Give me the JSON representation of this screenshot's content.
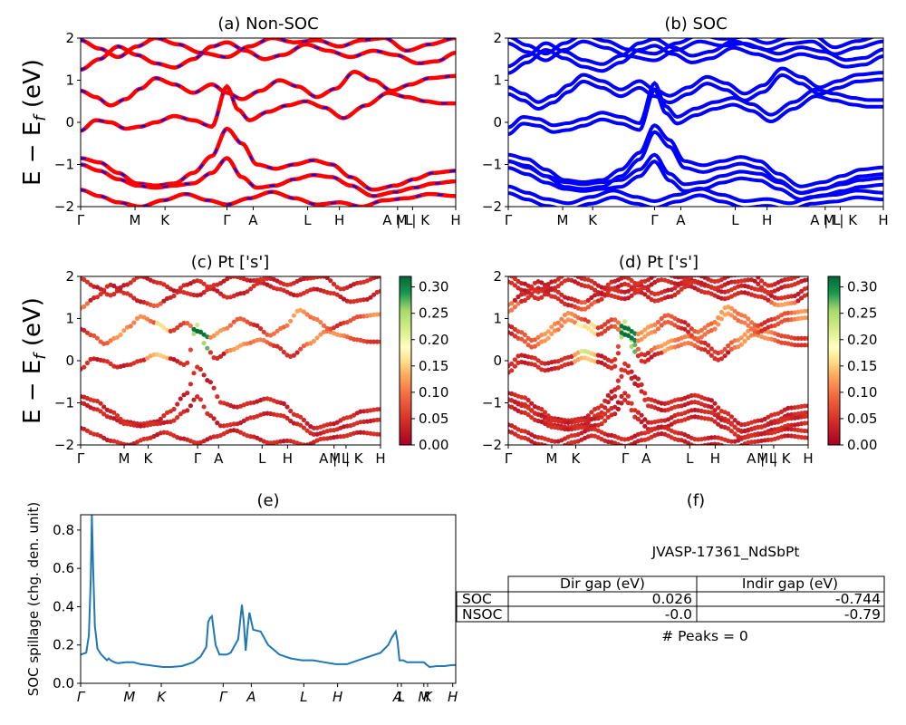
{
  "panels": {
    "a": {
      "title": "(a) Non-SOC"
    },
    "b": {
      "title": "(b) SOC"
    },
    "c": {
      "title": "(c)  Pt ['s']"
    },
    "d": {
      "title": "(d) Pt ['s']"
    },
    "e": {
      "title": "(e)",
      "ylabel": "SOC spillage (chg. den. unit)"
    },
    "f": {
      "title": "(f)"
    }
  },
  "band_ylabel": "E − E_f (eV)",
  "colors": {
    "nsoc_line": "#ff0000",
    "nsoc_dash": "#0000ff",
    "soc_line": "#0000ff",
    "spillage_line": "#1f77b4"
  },
  "colorbar": {
    "cmap": "RdYlGn",
    "range": [
      0.0,
      0.32
    ],
    "ticks": [
      "0.00",
      "0.05",
      "0.10",
      "0.15",
      "0.20",
      "0.25",
      "0.30"
    ]
  },
  "table": {
    "material": "JVASP-17361_NdSbPt",
    "columns": [
      "Dir gap (eV)",
      "Indir gap (eV)"
    ],
    "rows": [
      {
        "label": "SOC",
        "dir": "0.026",
        "indir": "-0.744"
      },
      {
        "label": "NSOC",
        "dir": "-0.0",
        "indir": "-0.79"
      }
    ],
    "peaks": "# Peaks = 0"
  },
  "chart_data": [
    {
      "id": "a",
      "type": "line",
      "title": "(a) Non-SOC",
      "ylabel": "E − E_f (eV)",
      "ylim": [
        -2,
        2
      ],
      "yticks": [
        "−2",
        "−1",
        "0",
        "1",
        "2"
      ],
      "kpath": [
        {
          "label": "Γ",
          "k": 0.0
        },
        {
          "label": "M",
          "k": 0.145
        },
        {
          "label": "K",
          "k": 0.225
        },
        {
          "label": "Γ",
          "k": 0.39
        },
        {
          "label": "A",
          "k": 0.46
        },
        {
          "label": "L",
          "k": 0.605
        },
        {
          "label": "H",
          "k": 0.69
        },
        {
          "label": "A | L",
          "k": 0.845
        },
        {
          "label": "M | K",
          "k": 0.885
        },
        {
          "label": "H",
          "k": 1.0
        }
      ],
      "series": [
        {
          "x": [
            0,
            0.05,
            0.1,
            0.15,
            0.2,
            0.25,
            0.3,
            0.35,
            0.39,
            0.43,
            0.47,
            0.52,
            0.57,
            0.62,
            0.67,
            0.72,
            0.78,
            0.84,
            0.89,
            0.94,
            1.0
          ],
          "y": [
            -0.85,
            -0.95,
            -1.2,
            -1.45,
            -1.5,
            -1.45,
            -1.2,
            -0.8,
            -0.15,
            -0.5,
            -1.0,
            -1.1,
            -1.0,
            -0.9,
            -1.0,
            -1.3,
            -1.6,
            -1.5,
            -1.35,
            -1.2,
            -1.15
          ]
        },
        {
          "x": [
            0,
            0.05,
            0.1,
            0.15,
            0.2,
            0.25,
            0.3,
            0.35,
            0.39,
            0.43,
            0.47,
            0.52,
            0.57,
            0.62,
            0.67,
            0.72,
            0.78,
            0.84,
            0.89,
            0.94,
            1.0
          ],
          "y": [
            -1.0,
            -1.15,
            -1.35,
            -1.5,
            -1.55,
            -1.5,
            -1.45,
            -1.2,
            -0.85,
            -1.3,
            -1.55,
            -1.5,
            -1.35,
            -1.25,
            -1.3,
            -1.5,
            -1.75,
            -1.65,
            -1.55,
            -1.45,
            -1.4
          ]
        },
        {
          "x": [
            0,
            0.04,
            0.08,
            0.12,
            0.16,
            0.2,
            0.25,
            0.3,
            0.35,
            0.39,
            0.42,
            0.45,
            0.5,
            0.55,
            0.6,
            0.65,
            0.7,
            0.76,
            0.82,
            0.87,
            0.92,
            0.96,
            1.0
          ],
          "y": [
            -0.2,
            0.05,
            0.0,
            -0.15,
            -0.1,
            0.0,
            0.15,
            0.05,
            -0.1,
            0.85,
            0.3,
            0.05,
            0.25,
            0.4,
            0.5,
            0.35,
            0.1,
            0.4,
            0.7,
            0.6,
            0.5,
            0.45,
            0.45
          ]
        },
        {
          "x": [
            0,
            0.04,
            0.08,
            0.12,
            0.16,
            0.2,
            0.25,
            0.3,
            0.35,
            0.39,
            0.43,
            0.48,
            0.53,
            0.58,
            0.63,
            0.68,
            0.73,
            0.78,
            0.83,
            0.88,
            0.93,
            1.0
          ],
          "y": [
            0.75,
            0.6,
            0.4,
            0.55,
            0.8,
            1.05,
            0.9,
            0.7,
            0.9,
            0.7,
            0.55,
            0.75,
            1.0,
            0.85,
            0.6,
            0.8,
            1.2,
            1.0,
            0.75,
            0.9,
            1.05,
            1.1
          ]
        },
        {
          "x": [
            0,
            0.05,
            0.1,
            0.15,
            0.2,
            0.25,
            0.3,
            0.35,
            0.39,
            0.44,
            0.49,
            0.54,
            0.6,
            0.66,
            0.72,
            0.78,
            0.84,
            0.9,
            0.95,
            1.0
          ],
          "y": [
            1.25,
            1.5,
            1.8,
            1.6,
            1.4,
            1.3,
            1.5,
            1.8,
            1.9,
            1.7,
            1.5,
            1.6,
            1.85,
            1.7,
            1.55,
            1.7,
            1.6,
            1.4,
            1.45,
            1.65
          ]
        },
        {
          "x": [
            0,
            0.05,
            0.1,
            0.15,
            0.2,
            0.26,
            0.32,
            0.39,
            0.45,
            0.51,
            0.57,
            0.63,
            0.69,
            0.75,
            0.81,
            0.87,
            0.93,
            1.0
          ],
          "y": [
            1.95,
            1.75,
            1.55,
            1.8,
            2.0,
            1.85,
            1.65,
            1.55,
            1.8,
            2.0,
            1.9,
            1.95,
            1.8,
            1.95,
            2.0,
            1.7,
            1.85,
            2.0
          ]
        },
        {
          "x": [
            0,
            0.05,
            0.1,
            0.16,
            0.22,
            0.28,
            0.34,
            0.39,
            0.45,
            0.51,
            0.57,
            0.63,
            0.69,
            0.75,
            0.81,
            0.87,
            0.93,
            1.0
          ],
          "y": [
            -1.6,
            -1.75,
            -1.9,
            -2.0,
            -1.85,
            -1.7,
            -1.85,
            -1.95,
            -1.8,
            -1.65,
            -1.8,
            -1.95,
            -1.9,
            -2.0,
            -1.85,
            -1.8,
            -1.7,
            -1.75
          ]
        }
      ]
    },
    {
      "id": "b",
      "type": "line",
      "title": "(b) SOC",
      "ylim": [
        -2,
        2
      ],
      "yticks": [
        "−2",
        "−1",
        "0",
        "1",
        "2"
      ],
      "kpath": [
        {
          "label": "Γ",
          "k": 0.0
        },
        {
          "label": "M",
          "k": 0.145
        },
        {
          "label": "K",
          "k": 0.225
        },
        {
          "label": "Γ",
          "k": 0.39
        },
        {
          "label": "A",
          "k": 0.46
        },
        {
          "label": "L",
          "k": 0.605
        },
        {
          "label": "H",
          "k": 0.69
        },
        {
          "label": "A | L",
          "k": 0.845
        },
        {
          "label": "M | K",
          "k": 0.885
        },
        {
          "label": "H",
          "k": 1.0
        }
      ],
      "note": "same dispersion as (a) with spin-orbit split pairs",
      "split": 0.08
    },
    {
      "id": "c",
      "type": "scatter",
      "title": "(c)  Pt ['s']",
      "ylim": [
        -2,
        2
      ],
      "color_range": [
        0.0,
        0.32
      ],
      "note": "band points colored by Pt s-orbital projection",
      "kpath": [
        {
          "label": "Γ",
          "k": 0.0
        },
        {
          "label": "M",
          "k": 0.145
        },
        {
          "label": "K",
          "k": 0.225
        },
        {
          "label": "Γ",
          "k": 0.39
        },
        {
          "label": "A",
          "k": 0.46
        },
        {
          "label": "L",
          "k": 0.605
        },
        {
          "label": "H",
          "k": 0.69
        },
        {
          "label": "A | L",
          "k": 0.845
        },
        {
          "label": "M | K",
          "k": 0.885
        },
        {
          "label": "H",
          "k": 1.0
        }
      ]
    },
    {
      "id": "d",
      "type": "scatter",
      "title": "(d) Pt ['s']",
      "ylim": [
        -2,
        2
      ],
      "color_range": [
        0.0,
        0.32
      ],
      "note": "SOC band points colored by Pt s-orbital projection",
      "kpath": [
        {
          "label": "Γ",
          "k": 0.0
        },
        {
          "label": "M",
          "k": 0.145
        },
        {
          "label": "K",
          "k": 0.225
        },
        {
          "label": "Γ",
          "k": 0.39
        },
        {
          "label": "A",
          "k": 0.46
        },
        {
          "label": "L",
          "k": 0.605
        },
        {
          "label": "H",
          "k": 0.69
        },
        {
          "label": "A | L",
          "k": 0.845
        },
        {
          "label": "M | K",
          "k": 0.885
        },
        {
          "label": "H",
          "k": 1.0
        }
      ]
    },
    {
      "id": "e",
      "type": "line",
      "title": "(e)",
      "ylabel": "SOC spillage (chg. den. unit)",
      "ylim": [
        0,
        0.88
      ],
      "yticks": [
        "0.0",
        "0.2",
        "0.4",
        "0.6",
        "0.8"
      ],
      "kpath": [
        {
          "label": "Γ",
          "k": 0.0
        },
        {
          "label": "M",
          "k": 0.13
        },
        {
          "label": "K",
          "k": 0.215
        },
        {
          "label": "Γ",
          "k": 0.38
        },
        {
          "label": "A",
          "k": 0.455
        },
        {
          "label": "L",
          "k": 0.595
        },
        {
          "label": "H",
          "k": 0.685
        },
        {
          "label": "A",
          "k": 0.845
        },
        {
          "label": "L",
          "k": 0.855
        },
        {
          "label": "M",
          "k": 0.915
        },
        {
          "label": "K",
          "k": 0.925
        },
        {
          "label": "H",
          "k": 0.992
        }
      ],
      "x": [
        0,
        0.015,
        0.022,
        0.027,
        0.03,
        0.033,
        0.038,
        0.045,
        0.055,
        0.065,
        0.07,
        0.075,
        0.08,
        0.09,
        0.1,
        0.12,
        0.14,
        0.15,
        0.16,
        0.18,
        0.2,
        0.22,
        0.24,
        0.27,
        0.3,
        0.32,
        0.335,
        0.34,
        0.345,
        0.35,
        0.36,
        0.37,
        0.38,
        0.385,
        0.39,
        0.4,
        0.42,
        0.43,
        0.435,
        0.44,
        0.445,
        0.45,
        0.46,
        0.48,
        0.5,
        0.53,
        0.56,
        0.59,
        0.62,
        0.65,
        0.68,
        0.71,
        0.74,
        0.77,
        0.8,
        0.82,
        0.83,
        0.84,
        0.845,
        0.85,
        0.86,
        0.87,
        0.9,
        0.91,
        0.915,
        0.93,
        0.95,
        0.97,
        0.99,
        1.0
      ],
      "y": [
        0.15,
        0.16,
        0.25,
        0.55,
        0.88,
        0.62,
        0.3,
        0.18,
        0.15,
        0.13,
        0.12,
        0.13,
        0.12,
        0.11,
        0.105,
        0.11,
        0.11,
        0.105,
        0.1,
        0.095,
        0.09,
        0.085,
        0.085,
        0.09,
        0.11,
        0.14,
        0.19,
        0.32,
        0.34,
        0.35,
        0.2,
        0.15,
        0.15,
        0.15,
        0.15,
        0.16,
        0.23,
        0.41,
        0.32,
        0.17,
        0.28,
        0.37,
        0.28,
        0.27,
        0.2,
        0.15,
        0.13,
        0.12,
        0.12,
        0.11,
        0.1,
        0.1,
        0.12,
        0.14,
        0.16,
        0.2,
        0.24,
        0.27,
        0.22,
        0.12,
        0.12,
        0.11,
        0.11,
        0.11,
        0.11,
        0.085,
        0.09,
        0.09,
        0.095,
        0.095
      ]
    }
  ]
}
